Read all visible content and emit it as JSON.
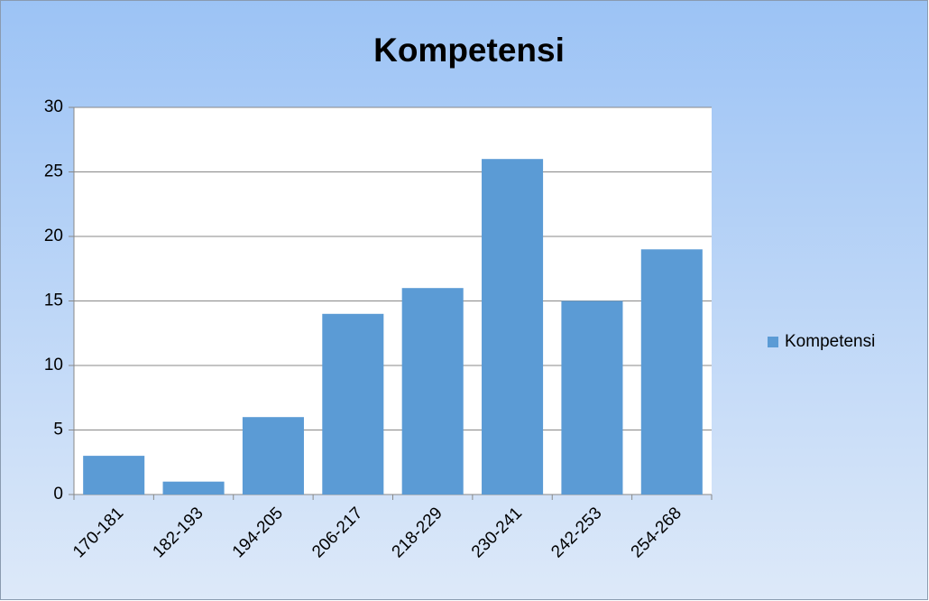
{
  "chart_data": {
    "type": "bar",
    "title": "Kompetensi",
    "categories": [
      "170-181",
      "182-193",
      "194-205",
      "206-217",
      "218-229",
      "230-241",
      "242-253",
      "254-268"
    ],
    "series": [
      {
        "name": "Kompetensi",
        "color": "#5b9bd5",
        "values": [
          3,
          1,
          6,
          14,
          16,
          26,
          15,
          19
        ]
      }
    ],
    "ylim": [
      0,
      30
    ],
    "yticks": [
      0,
      5,
      10,
      15,
      20,
      25,
      30
    ],
    "grid": true,
    "legend": "right"
  }
}
